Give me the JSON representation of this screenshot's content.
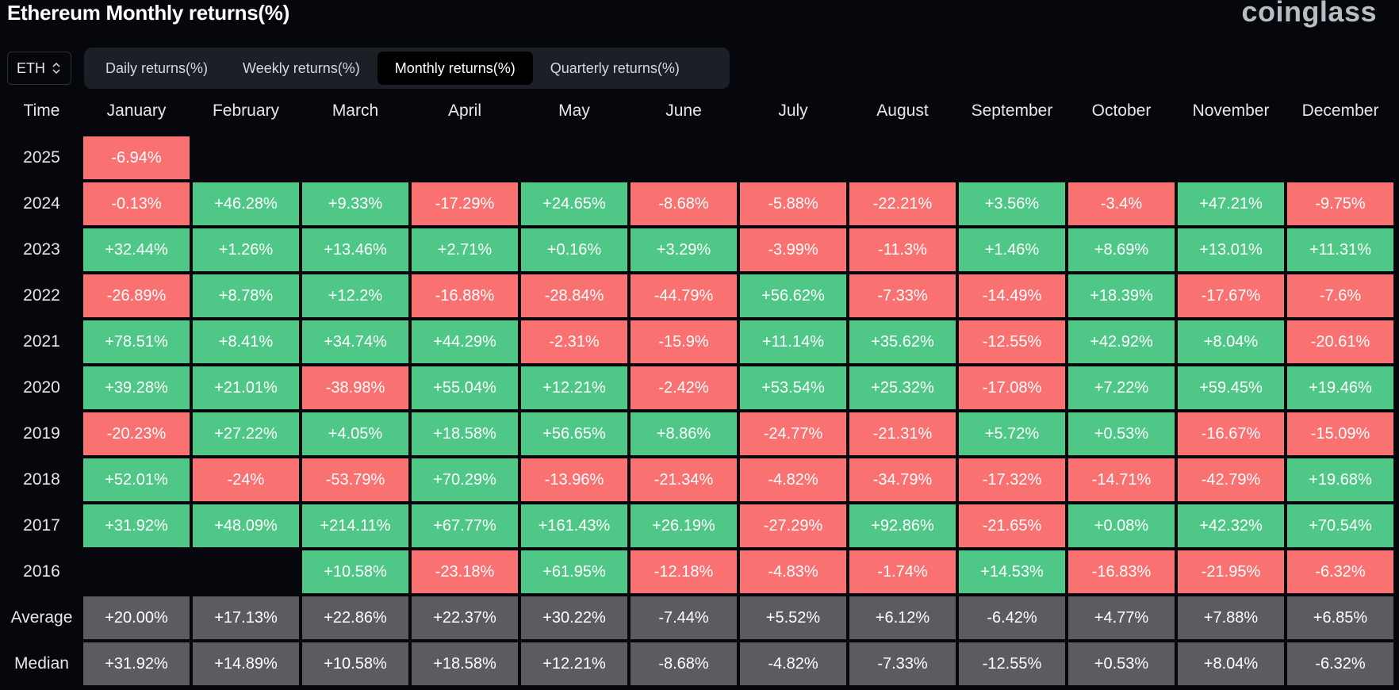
{
  "title": "Ethereum Monthly returns(%)",
  "brand": "coinglass",
  "asset_select": {
    "value": "ETH"
  },
  "tabs": [
    {
      "label": "Daily returns(%)",
      "active": false
    },
    {
      "label": "Weekly returns(%)",
      "active": false
    },
    {
      "label": "Monthly returns(%)",
      "active": true
    },
    {
      "label": "Quarterly returns(%)",
      "active": false
    }
  ],
  "colors": {
    "positive": "#4fc887",
    "negative": "#fa7171",
    "stat": "#5b5c61",
    "background": "#05070c"
  },
  "chart_data": {
    "type": "heatmap",
    "row_header": "Time",
    "columns": [
      "January",
      "February",
      "March",
      "April",
      "May",
      "June",
      "July",
      "August",
      "September",
      "October",
      "November",
      "December"
    ],
    "rows": [
      {
        "label": "2025",
        "values": [
          "-6.94%",
          null,
          null,
          null,
          null,
          null,
          null,
          null,
          null,
          null,
          null,
          null
        ]
      },
      {
        "label": "2024",
        "values": [
          "-0.13%",
          "+46.28%",
          "+9.33%",
          "-17.29%",
          "+24.65%",
          "-8.68%",
          "-5.88%",
          "-22.21%",
          "+3.56%",
          "-3.4%",
          "+47.21%",
          "-9.75%"
        ]
      },
      {
        "label": "2023",
        "values": [
          "+32.44%",
          "+1.26%",
          "+13.46%",
          "+2.71%",
          "+0.16%",
          "+3.29%",
          "-3.99%",
          "-11.3%",
          "+1.46%",
          "+8.69%",
          "+13.01%",
          "+11.31%"
        ]
      },
      {
        "label": "2022",
        "values": [
          "-26.89%",
          "+8.78%",
          "+12.2%",
          "-16.88%",
          "-28.84%",
          "-44.79%",
          "+56.62%",
          "-7.33%",
          "-14.49%",
          "+18.39%",
          "-17.67%",
          "-7.6%"
        ]
      },
      {
        "label": "2021",
        "values": [
          "+78.51%",
          "+8.41%",
          "+34.74%",
          "+44.29%",
          "-2.31%",
          "-15.9%",
          "+11.14%",
          "+35.62%",
          "-12.55%",
          "+42.92%",
          "+8.04%",
          "-20.61%"
        ]
      },
      {
        "label": "2020",
        "values": [
          "+39.28%",
          "+21.01%",
          "-38.98%",
          "+55.04%",
          "+12.21%",
          "-2.42%",
          "+53.54%",
          "+25.32%",
          "-17.08%",
          "+7.22%",
          "+59.45%",
          "+19.46%"
        ]
      },
      {
        "label": "2019",
        "values": [
          "-20.23%",
          "+27.22%",
          "+4.05%",
          "+18.58%",
          "+56.65%",
          "+8.86%",
          "-24.77%",
          "-21.31%",
          "+5.72%",
          "+0.53%",
          "-16.67%",
          "-15.09%"
        ]
      },
      {
        "label": "2018",
        "values": [
          "+52.01%",
          "-24%",
          "-53.79%",
          "+70.29%",
          "-13.96%",
          "-21.34%",
          "-4.82%",
          "-34.79%",
          "-17.32%",
          "-14.71%",
          "-42.79%",
          "+19.68%"
        ]
      },
      {
        "label": "2017",
        "values": [
          "+31.92%",
          "+48.09%",
          "+214.11%",
          "+67.77%",
          "+161.43%",
          "+26.19%",
          "-27.29%",
          "+92.86%",
          "-21.65%",
          "+0.08%",
          "+42.32%",
          "+70.54%"
        ]
      },
      {
        "label": "2016",
        "values": [
          null,
          null,
          "+10.58%",
          "-23.18%",
          "+61.95%",
          "-12.18%",
          "-4.83%",
          "-1.74%",
          "+14.53%",
          "-16.83%",
          "-21.95%",
          "-6.32%"
        ]
      },
      {
        "label": "Average",
        "stat": true,
        "values": [
          "+20.00%",
          "+17.13%",
          "+22.86%",
          "+22.37%",
          "+30.22%",
          "-7.44%",
          "+5.52%",
          "+6.12%",
          "-6.42%",
          "+4.77%",
          "+7.88%",
          "+6.85%"
        ]
      },
      {
        "label": "Median",
        "stat": true,
        "values": [
          "+31.92%",
          "+14.89%",
          "+10.58%",
          "+18.58%",
          "+12.21%",
          "-8.68%",
          "-4.82%",
          "-7.33%",
          "-12.55%",
          "+0.53%",
          "+8.04%",
          "-6.32%"
        ]
      }
    ]
  }
}
